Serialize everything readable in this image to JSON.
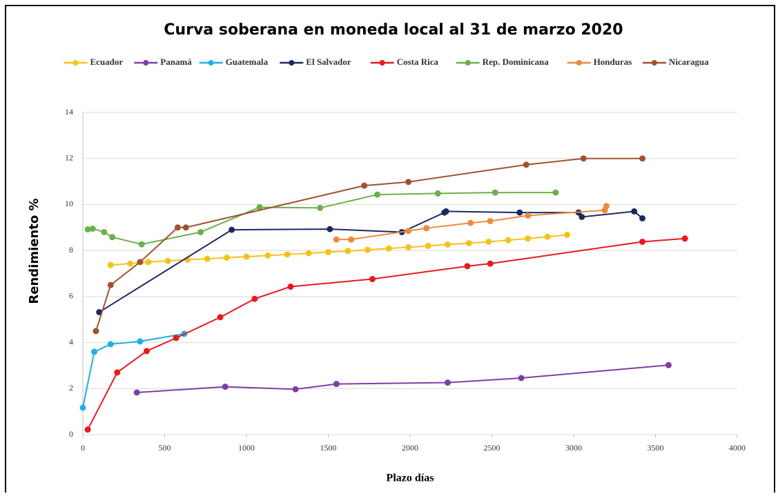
{
  "chart_data": {
    "type": "line",
    "title": "Curva soberana en moneda local al 31 de marzo 2020",
    "xlabel": "Plazo días",
    "ylabel": "Rendimiento %",
    "xlim": [
      0,
      4000
    ],
    "xticks": [
      0,
      500,
      1000,
      1500,
      2000,
      2500,
      3000,
      3500,
      4000
    ],
    "ylim": [
      0,
      14
    ],
    "yticks": [
      0,
      2,
      4,
      6,
      8,
      10,
      12,
      14
    ],
    "grid": true,
    "legend": "top",
    "series": [
      {
        "name": "Ecuador",
        "color": "#f5c21b",
        "x": [
          170,
          290,
          400,
          520,
          640,
          760,
          880,
          1000,
          1130,
          1250,
          1380,
          1500,
          1620,
          1740,
          1870,
          1990,
          2110,
          2230,
          2360,
          2480,
          2600,
          2720,
          2840,
          2960
        ],
        "values": [
          7.37,
          7.43,
          7.5,
          7.55,
          7.6,
          7.64,
          7.69,
          7.73,
          7.78,
          7.83,
          7.88,
          7.93,
          7.98,
          8.03,
          8.09,
          8.14,
          8.2,
          8.26,
          8.32,
          8.38,
          8.45,
          8.52,
          8.6,
          8.68
        ]
      },
      {
        "name": "Panamá",
        "color": "#7b3fa6",
        "x": [
          330,
          870,
          1300,
          1550,
          2230,
          2680,
          3580
        ],
        "values": [
          1.83,
          2.08,
          1.97,
          2.2,
          2.26,
          2.46,
          3.02
        ]
      },
      {
        "name": "Guatemala",
        "color": "#22aee6",
        "x": [
          0,
          70,
          170,
          350,
          620
        ],
        "values": [
          1.17,
          3.6,
          3.93,
          4.05,
          4.38
        ]
      },
      {
        "name": "El Salvador",
        "color": "#1a2a5e",
        "x": [
          100,
          910,
          1510,
          1950,
          2210,
          2220,
          2670,
          3030,
          3050,
          3370,
          3420
        ],
        "values": [
          5.32,
          8.9,
          8.93,
          8.8,
          9.65,
          9.7,
          9.65,
          9.65,
          9.46,
          9.7,
          9.4
        ]
      },
      {
        "name": "Costa Rica",
        "color": "#e8191d",
        "x": [
          30,
          210,
          390,
          570,
          840,
          1050,
          1270,
          1770,
          2350,
          2490,
          3420,
          3680
        ],
        "values": [
          0.22,
          2.7,
          3.63,
          4.2,
          5.1,
          5.9,
          6.43,
          6.76,
          7.32,
          7.43,
          8.38,
          8.52
        ]
      },
      {
        "name": "Rep. Dominicana",
        "color": "#6ab04c",
        "x": [
          30,
          60,
          130,
          180,
          360,
          720,
          1080,
          1450,
          1800,
          2170,
          2520,
          2890
        ],
        "values": [
          8.92,
          8.95,
          8.8,
          8.58,
          8.27,
          8.8,
          9.88,
          9.85,
          10.43,
          10.48,
          10.52,
          10.52
        ]
      },
      {
        "name": "Honduras",
        "color": "#ee8a3c",
        "x": [
          1550,
          1640,
          1990,
          2100,
          2370,
          2490,
          2720,
          3190,
          3200
        ],
        "values": [
          8.48,
          8.48,
          8.85,
          8.97,
          9.2,
          9.28,
          9.52,
          9.75,
          9.93
        ]
      },
      {
        "name": "Nicaragua",
        "color": "#a0522d",
        "x": [
          80,
          170,
          350,
          580,
          630,
          1720,
          1990,
          2710,
          3060,
          3420
        ],
        "values": [
          4.5,
          6.5,
          7.5,
          9.0,
          9.0,
          10.82,
          10.98,
          11.73,
          12.0,
          12.0
        ]
      }
    ]
  }
}
